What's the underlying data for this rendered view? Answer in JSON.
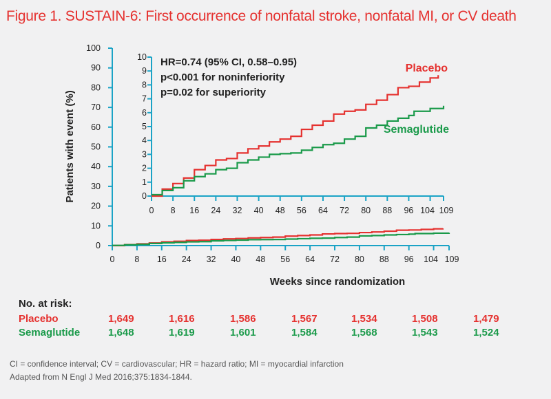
{
  "colors": {
    "placebo": "#e5312f",
    "semaglutide": "#1a9a4a",
    "axis": "#1ba3c6"
  },
  "chart_data": {
    "type": "line",
    "title": "Figure 1. SUSTAIN-6: First occurrence of nonfatal stroke, nonfatal MI, or CV death",
    "xlabel": "Weeks since randomization",
    "ylabel": "Patients with event (%)",
    "xlim": [
      0,
      109
    ],
    "ylim": [
      0,
      100
    ],
    "xticks": [
      "0",
      "8",
      "16",
      "24",
      "32",
      "40",
      "48",
      "56",
      "64",
      "72",
      "80",
      "88",
      "96",
      "104",
      "109"
    ],
    "yticks": [
      "0",
      "10",
      "20",
      "30",
      "40",
      "50",
      "60",
      "70",
      "80",
      "90",
      "100"
    ],
    "inset": {
      "ylim": [
        0,
        10
      ],
      "yticks": [
        "0",
        "1",
        "2",
        "3",
        "4",
        "5",
        "6",
        "7",
        "8",
        "9",
        "10"
      ],
      "xticks": [
        "0",
        "8",
        "16",
        "24",
        "32",
        "40",
        "48",
        "56",
        "64",
        "72",
        "80",
        "88",
        "96",
        "104",
        "109"
      ]
    },
    "annotations": [
      "HR=0.74 (95% CI, 0.58–0.95)",
      "p<0.001 for noninferiority",
      "p=0.02 for superiority"
    ],
    "series": [
      {
        "name": "Placebo",
        "x": [
          0,
          4,
          8,
          12,
          16,
          20,
          24,
          28,
          32,
          36,
          40,
          44,
          48,
          52,
          56,
          60,
          64,
          68,
          72,
          76,
          80,
          84,
          88,
          92,
          96,
          100,
          104,
          107
        ],
        "y": [
          0,
          0.5,
          0.9,
          1.3,
          1.9,
          2.2,
          2.6,
          2.7,
          3.1,
          3.4,
          3.6,
          3.9,
          4.1,
          4.3,
          4.8,
          5.1,
          5.4,
          5.9,
          6.1,
          6.2,
          6.6,
          6.9,
          7.3,
          7.8,
          7.9,
          8.2,
          8.5,
          8.7
        ]
      },
      {
        "name": "Semaglutide",
        "x": [
          0,
          4,
          8,
          12,
          16,
          20,
          24,
          28,
          32,
          36,
          40,
          44,
          48,
          52,
          56,
          60,
          64,
          68,
          72,
          76,
          80,
          84,
          88,
          92,
          96,
          98,
          104,
          109
        ],
        "y": [
          0.1,
          0.4,
          0.6,
          1.1,
          1.4,
          1.6,
          1.9,
          2.0,
          2.4,
          2.6,
          2.8,
          3.0,
          3.05,
          3.1,
          3.3,
          3.5,
          3.7,
          3.8,
          4.1,
          4.3,
          4.9,
          5.1,
          5.4,
          5.6,
          5.8,
          6.1,
          6.3,
          6.5
        ]
      }
    ]
  },
  "risk": {
    "label": "No. at risk:",
    "rows": [
      {
        "name": "Placebo",
        "values": [
          "1,649",
          "1,616",
          "1,586",
          "1,567",
          "1,534",
          "1,508",
          "1,479"
        ]
      },
      {
        "name": "Semaglutide",
        "values": [
          "1,648",
          "1,619",
          "1,601",
          "1,584",
          "1,568",
          "1,543",
          "1,524"
        ]
      }
    ]
  },
  "footer": [
    "CI = confidence interval; CV = cardiovascular; HR = hazard ratio; MI = myocardial infarction",
    "Adapted from N Engl J Med 2016;375:1834-1844."
  ]
}
